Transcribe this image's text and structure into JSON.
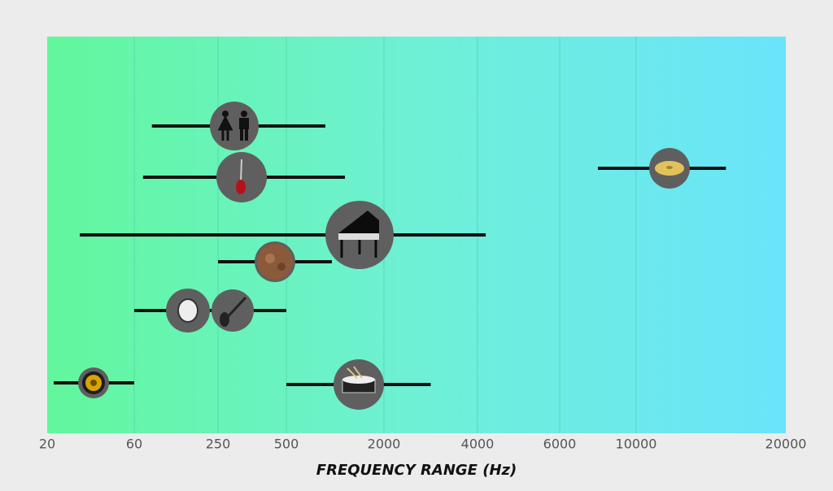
{
  "chart_data": {
    "type": "range",
    "xlabel": "FREQUENCY RANGE (Hz)",
    "xlim": [
      20,
      20000
    ],
    "xticks": [
      20,
      60,
      250,
      500,
      2000,
      4000,
      6000,
      10000,
      20000
    ],
    "grid": true,
    "bar_color": "#111111",
    "icon_color": "#5f5f5f",
    "ranges": [
      {
        "low": 100,
        "high": 1100
      },
      {
        "low": 80,
        "high": 1400
      },
      {
        "low": 35,
        "high": 4200
      },
      {
        "low": 250,
        "high": 1200
      },
      {
        "low": 60,
        "high": 250
      },
      {
        "low": 250,
        "high": 500
      },
      {
        "low": 23,
        "high": 60
      },
      {
        "low": 500,
        "high": 3000
      },
      {
        "low": 8000,
        "high": 16000
      }
    ]
  }
}
